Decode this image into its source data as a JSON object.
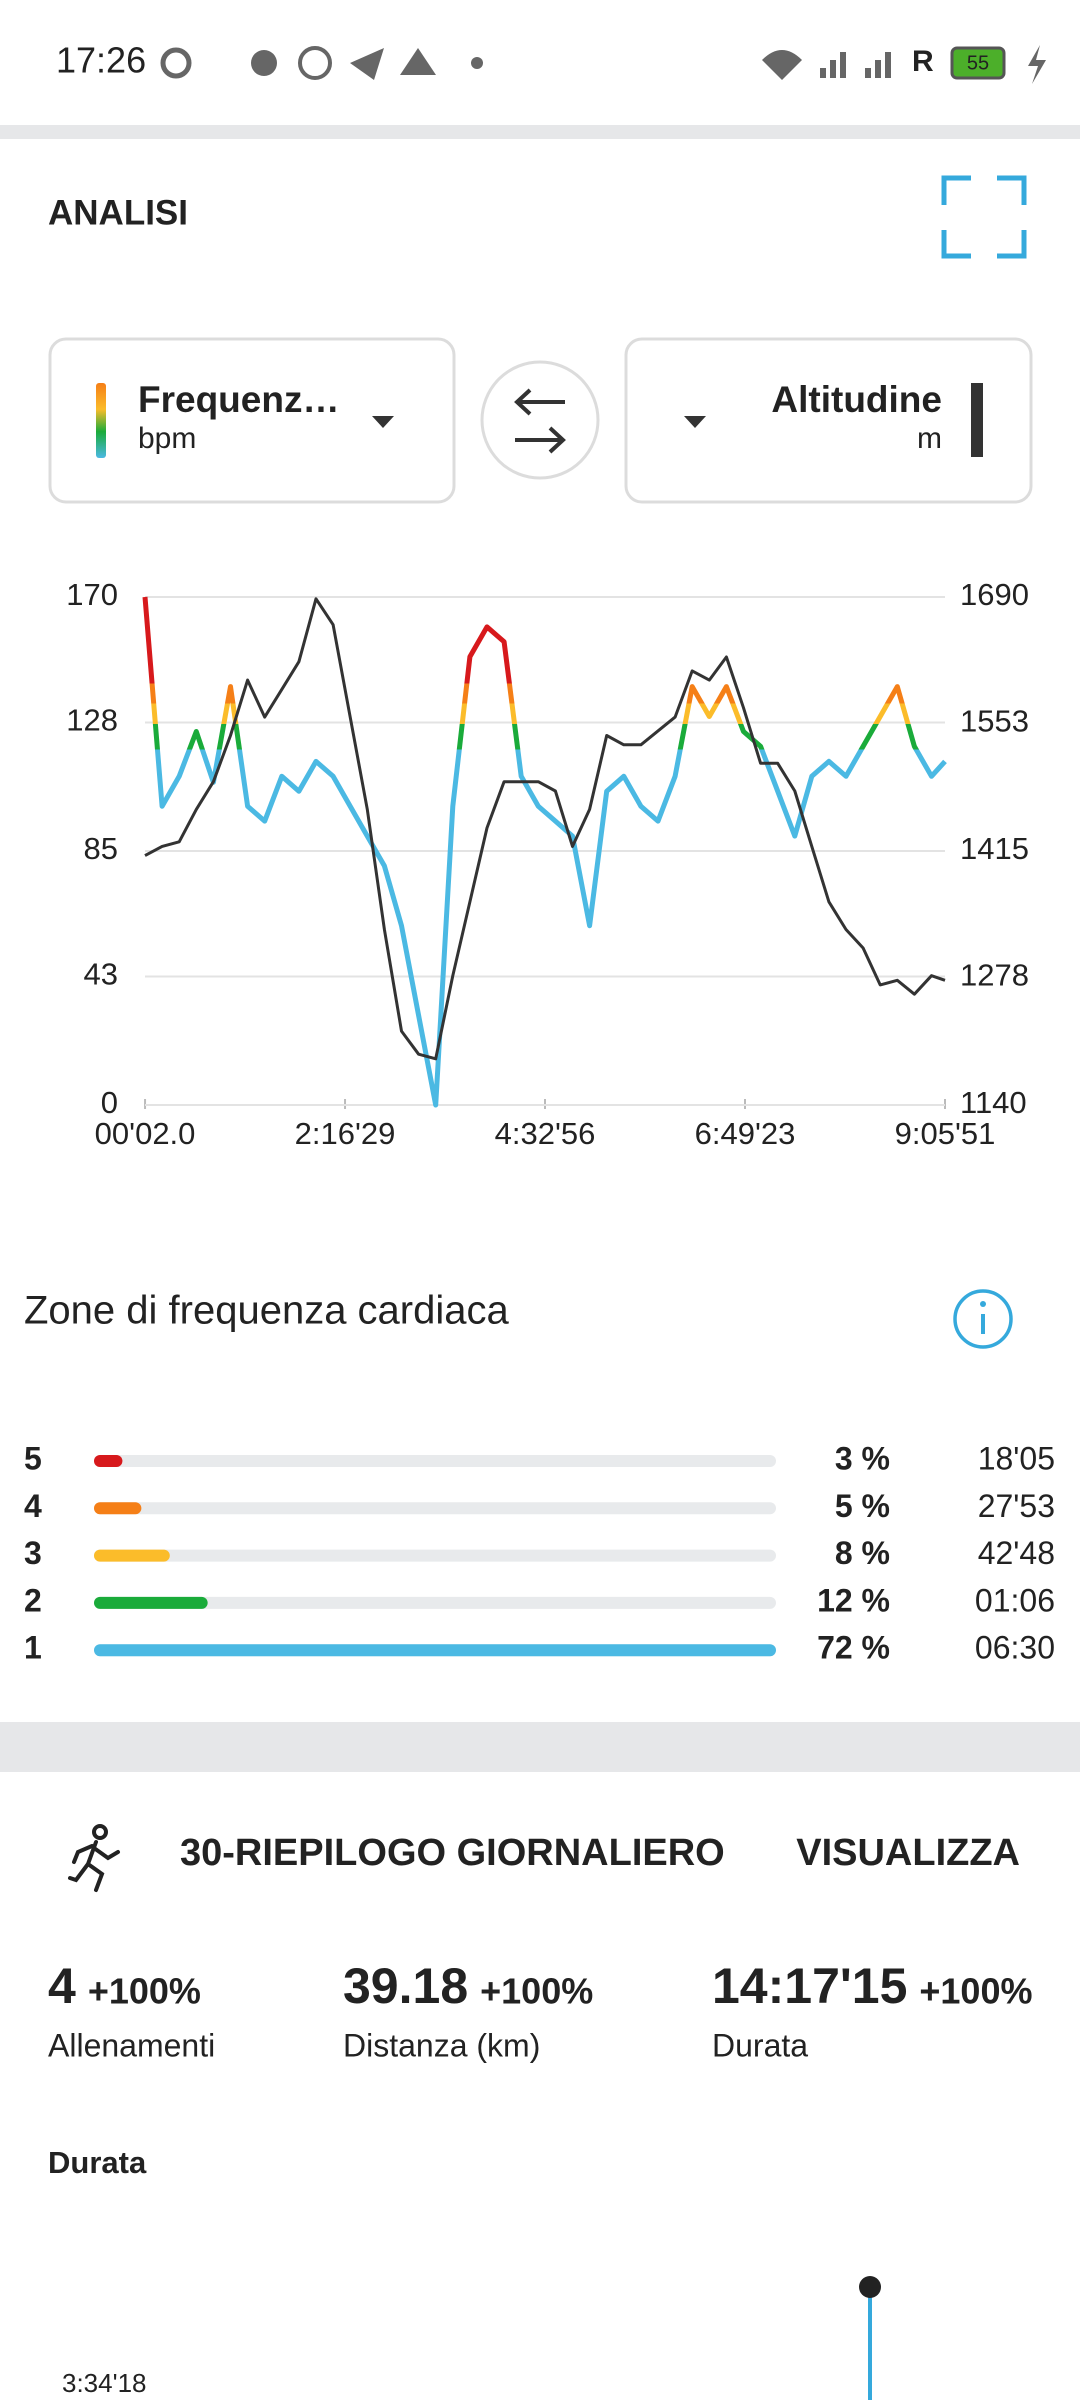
{
  "status_bar": {
    "time": "17:26",
    "network": "R",
    "battery": "55"
  },
  "analysis": {
    "title": "ANALISI"
  },
  "chart_data": {
    "type": "line",
    "x": [
      0,
      700,
      1400,
      2100,
      2800,
      3500,
      4200,
      4900,
      5600,
      6300,
      7000,
      7700,
      8400,
      9100,
      9800,
      10500,
      11200,
      11900,
      12600,
      13300,
      14000,
      14700,
      15400,
      16100,
      16800,
      17500,
      18200,
      18900,
      19600,
      20300,
      21000,
      21700,
      22400,
      23100,
      23800,
      24500,
      25200,
      25900,
      26600,
      27300,
      28000,
      28700,
      29400,
      30100,
      30800,
      31500,
      32200,
      32751
    ],
    "xlim": [
      0,
      32751
    ],
    "xticks": [
      {
        "value": 2,
        "label": "00'02.0"
      },
      {
        "value": 8189,
        "label": "2:16'29"
      },
      {
        "value": 16376,
        "label": "4:32'56"
      },
      {
        "value": 24563,
        "label": "6:49'23"
      },
      {
        "value": 32751,
        "label": "9:05'51"
      }
    ],
    "ylim": [
      0,
      170
    ],
    "yticks": [
      0,
      43,
      85,
      128,
      170
    ],
    "y2lim": [
      1140,
      1690
    ],
    "y2ticks": [
      1140,
      1278,
      1415,
      1553,
      1690
    ],
    "grid": true,
    "series": [
      {
        "name": "Frequenz…",
        "unit": "bpm",
        "color": "#4bb9e3",
        "values": [
          170,
          100,
          110,
          125,
          108,
          140,
          100,
          95,
          110,
          105,
          115,
          110,
          100,
          90,
          80,
          60,
          30,
          0,
          100,
          150,
          160,
          155,
          110,
          100,
          95,
          90,
          60,
          105,
          110,
          100,
          95,
          110,
          140,
          130,
          140,
          125,
          120,
          105,
          90,
          110,
          115,
          110,
          120,
          130,
          140,
          120,
          110,
          115
        ]
      },
      {
        "name": "Altitudine",
        "unit": "m",
        "color": "#333333",
        "axis": "y2",
        "values": [
          1410,
          1420,
          1425,
          1460,
          1490,
          1540,
          1600,
          1560,
          1590,
          1620,
          1688,
          1660,
          1560,
          1460,
          1330,
          1220,
          1195,
          1190,
          1280,
          1360,
          1440,
          1490,
          1490,
          1490,
          1480,
          1420,
          1460,
          1540,
          1530,
          1530,
          1545,
          1560,
          1610,
          1600,
          1625,
          1570,
          1510,
          1510,
          1480,
          1420,
          1360,
          1330,
          1310,
          1270,
          1275,
          1260,
          1280,
          1275
        ]
      }
    ]
  },
  "zones": {
    "title": "Zone di frequenza cardiaca",
    "rows": [
      {
        "zone": "5",
        "color": "#d7191c",
        "value": 3,
        "value_label": "3 %",
        "time": "18'05"
      },
      {
        "zone": "4",
        "color": "#f57f17",
        "value": 5,
        "value_label": "5 %",
        "time": "27'53"
      },
      {
        "zone": "3",
        "color": "#fbbc2a",
        "value": 8,
        "value_label": "8 %",
        "time": "42'48"
      },
      {
        "zone": "2",
        "color": "#1aab3a",
        "value": 12,
        "value_label": "12 %",
        "time": "01:06"
      },
      {
        "zone": "1",
        "color": "#4bb9e3",
        "value": 72,
        "value_label": "72 %",
        "time": "06:30"
      }
    ]
  },
  "summary": {
    "title": "30-RIEPILOGO GIORNALIERO",
    "action": "VISUALIZZA",
    "stats": [
      {
        "value": "4",
        "change": "+100%",
        "label": "Allenamenti"
      },
      {
        "value": "39.18",
        "change": "+100%",
        "label": "Distanza (km)"
      },
      {
        "value": "14:17'15",
        "change": "+100%",
        "label": "Durata"
      }
    ],
    "subtitle": "Durata",
    "axis_label": "3:34'18"
  }
}
